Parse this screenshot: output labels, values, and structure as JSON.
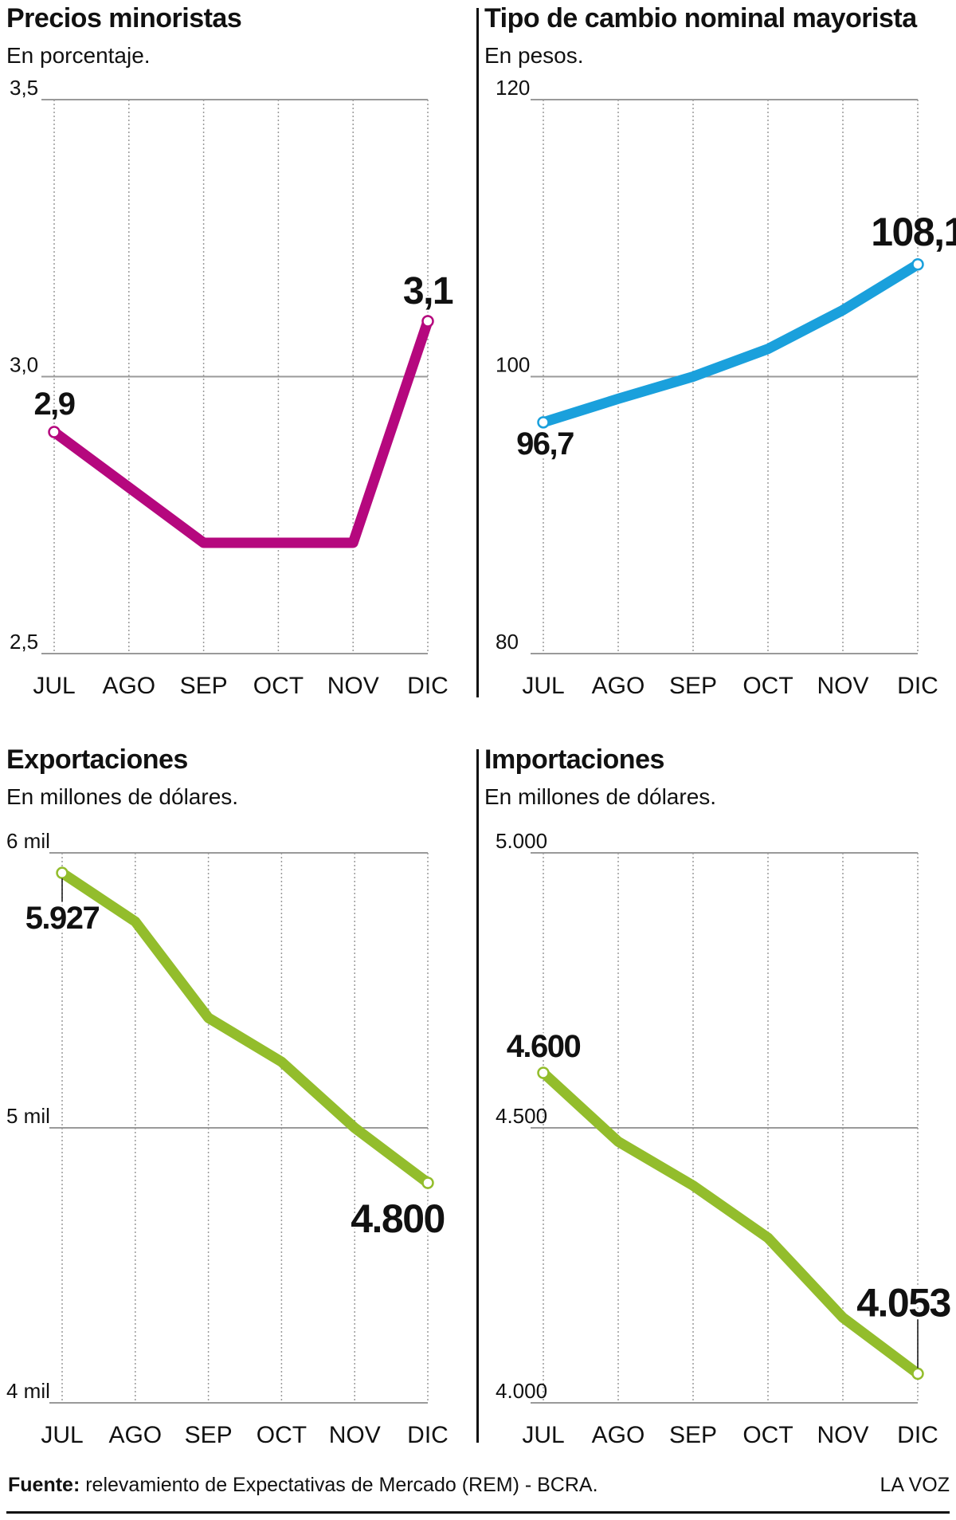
{
  "footer": {
    "source_label": "Fuente:",
    "source_text": "relevamiento de Expectativas de Mercado (REM) - BCRA.",
    "brand": "LA VOZ"
  },
  "chart_data": [
    {
      "type": "line",
      "title": "Precios minoristas",
      "subtitle": "En porcentaje.",
      "categories": [
        "JUL",
        "AGO",
        "SEP",
        "OCT",
        "NOV",
        "DIC"
      ],
      "series": [
        {
          "values": [
            2.9,
            2.8,
            2.7,
            2.7,
            2.7,
            3.1
          ]
        }
      ],
      "ylim": [
        2.5,
        3.5
      ],
      "yticks": [
        2.5,
        3.0,
        3.5
      ],
      "ytick_labels": [
        "2,5",
        "3,0",
        "3,5"
      ],
      "color": "#b5087e",
      "annotations": [
        {
          "index": 0,
          "text": "2,9"
        },
        {
          "index": 5,
          "text": "3,1"
        }
      ],
      "grid": true
    },
    {
      "type": "line",
      "title": "Tipo de cambio nominal mayorista",
      "subtitle": "En pesos.",
      "categories": [
        "JUL",
        "AGO",
        "SEP",
        "OCT",
        "NOV",
        "DIC"
      ],
      "series": [
        {
          "values": [
            96.7,
            98.4,
            100.0,
            102.0,
            104.8,
            108.1
          ]
        }
      ],
      "ylim": [
        80,
        120
      ],
      "yticks": [
        80,
        100,
        120
      ],
      "ytick_labels": [
        "80",
        "100",
        "120"
      ],
      "color": "#1aa0dc",
      "annotations": [
        {
          "index": 0,
          "text": "96,7"
        },
        {
          "index": 5,
          "text": "108,1"
        }
      ],
      "grid": true
    },
    {
      "type": "line",
      "title": "Exportaciones",
      "subtitle": "En millones de dólares.",
      "categories": [
        "JUL",
        "AGO",
        "SEP",
        "OCT",
        "NOV",
        "DIC"
      ],
      "series": [
        {
          "values": [
            5927,
            5750,
            5400,
            5240,
            5000,
            4800
          ]
        }
      ],
      "ylim": [
        4000,
        6000
      ],
      "yticks": [
        4000,
        5000,
        6000
      ],
      "ytick_labels": [
        "4 mil",
        "5 mil",
        "6 mil"
      ],
      "color": "#93bd2c",
      "annotations": [
        {
          "index": 0,
          "text": "5.927"
        },
        {
          "index": 5,
          "text": "4.800"
        }
      ],
      "grid": true
    },
    {
      "type": "line",
      "title": "Importaciones",
      "subtitle": "En millones de dólares.",
      "categories": [
        "JUL",
        "AGO",
        "SEP",
        "OCT",
        "NOV",
        "DIC"
      ],
      "series": [
        {
          "values": [
            4600,
            4475,
            4395,
            4300,
            4155,
            4053
          ]
        }
      ],
      "ylim": [
        4000,
        5000
      ],
      "yticks": [
        4000,
        4500,
        5000
      ],
      "ytick_labels": [
        "4.000",
        "4.500",
        "5.000"
      ],
      "color": "#93bd2c",
      "annotations": [
        {
          "index": 0,
          "text": "4.600"
        },
        {
          "index": 5,
          "text": "4.053"
        }
      ],
      "grid": true
    }
  ]
}
